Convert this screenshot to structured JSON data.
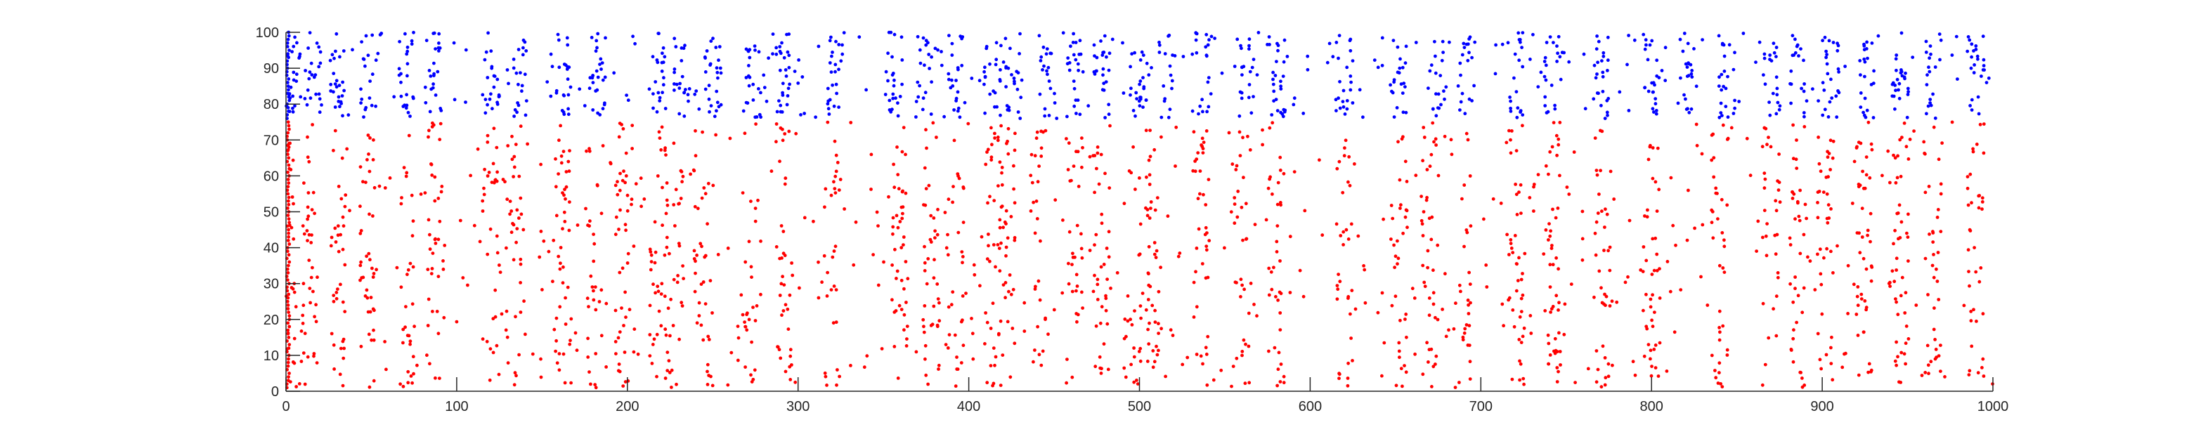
{
  "chart_data": {
    "type": "scatter",
    "title": "",
    "xlabel": "",
    "ylabel": "",
    "xlim": [
      0,
      1000
    ],
    "ylim": [
      0,
      100
    ],
    "xticks": [
      0,
      100,
      200,
      300,
      400,
      500,
      600,
      700,
      800,
      900,
      1000
    ],
    "yticks": [
      0,
      10,
      20,
      30,
      40,
      50,
      60,
      70,
      80,
      90,
      100
    ],
    "grid": false,
    "legend": "none",
    "marker": "dot",
    "series": [
      {
        "color": "#ff0000",
        "y_range": [
          1,
          75
        ],
        "x_clusters": [
          1,
          14,
          30,
          48,
          70,
          88,
          120,
          133,
          162,
          180,
          198,
          218,
          228,
          244,
          272,
          292,
          320,
          360,
          378,
          392,
          414,
          422,
          440,
          462,
          478,
          496,
          508,
          536,
          560,
          580,
          620,
          652,
          670,
          690,
          720,
          742,
          772,
          800,
          840,
          870,
          886,
          902,
          925,
          946,
          965,
          990
        ]
      },
      {
        "color": "#0000ff",
        "y_range": [
          76,
          100
        ],
        "x_clusters": [
          3,
          16,
          30,
          48,
          70,
          86,
          120,
          136,
          162,
          182,
          218,
          232,
          250,
          274,
          292,
          322,
          356,
          374,
          392,
          414,
          426,
          446,
          462,
          478,
          498,
          516,
          538,
          562,
          582,
          620,
          652,
          674,
          692,
          720,
          742,
          770,
          800,
          820,
          844,
          870,
          886,
          905,
          926,
          946,
          965,
          990
        ]
      }
    ]
  }
}
